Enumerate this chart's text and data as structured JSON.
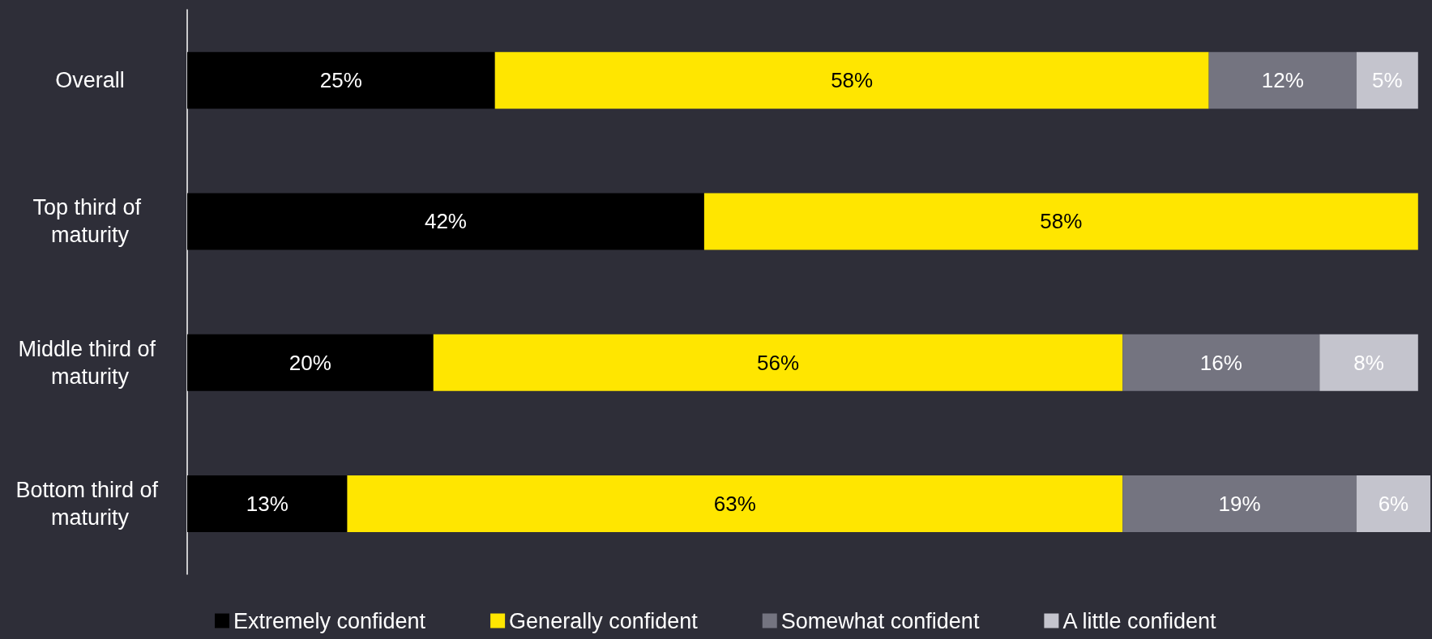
{
  "chart_data": {
    "type": "bar",
    "orientation": "horizontal",
    "stacked": true,
    "grid": false,
    "legend": "bottom",
    "xlim": [
      0,
      101
    ],
    "categories": [
      "Overall",
      "Top third of maturity",
      "Middle third of maturity",
      "Bottom third of maturity"
    ],
    "series": [
      {
        "name": "Extremely confident",
        "color": "#000000",
        "values": [
          25,
          42,
          20,
          13
        ],
        "value_labels": [
          "25%",
          "42%",
          "20%",
          "13%"
        ]
      },
      {
        "name": "Generally confident",
        "color": "#ffe600",
        "values": [
          58,
          58,
          56,
          63
        ],
        "value_labels": [
          "58%",
          "58%",
          "56%",
          "63%"
        ]
      },
      {
        "name": "Somewhat confident",
        "color": "#747480",
        "values": [
          12,
          null,
          16,
          19
        ],
        "value_labels": [
          "12%",
          null,
          "16%",
          "19%"
        ]
      },
      {
        "name": "A little confident",
        "color": "#c4c4cd",
        "values": [
          5,
          null,
          8,
          6
        ],
        "value_labels": [
          "5%",
          null,
          "8%",
          "6%"
        ]
      }
    ]
  }
}
